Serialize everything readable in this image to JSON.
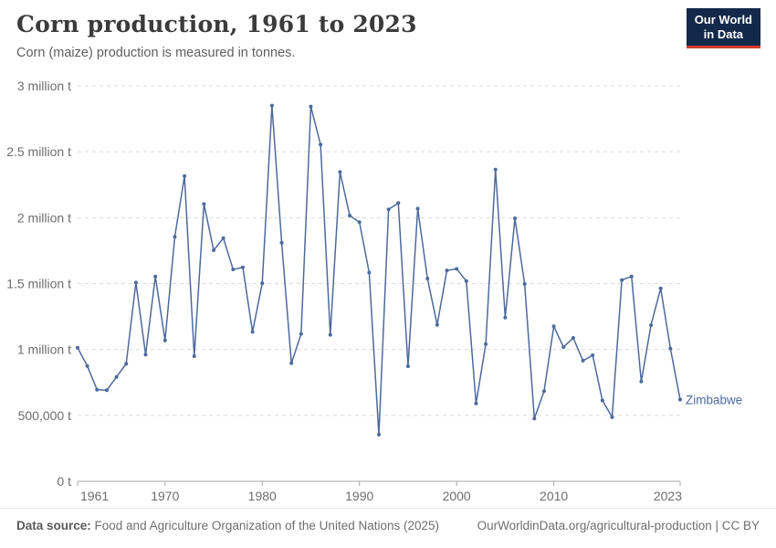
{
  "header": {
    "title": "Corn production, 1961 to 2023",
    "subtitle": "Corn (maize) production is measured in tonnes."
  },
  "logo": {
    "line1": "Our World",
    "line2": "in Data"
  },
  "chart_data": {
    "type": "line",
    "title": "Corn production, 1961 to 2023",
    "unit": "tonnes",
    "entity_label": "Zimbabwe",
    "x": [
      1961,
      1962,
      1963,
      1964,
      1965,
      1966,
      1967,
      1968,
      1969,
      1970,
      1971,
      1972,
      1973,
      1974,
      1975,
      1976,
      1977,
      1978,
      1979,
      1980,
      1981,
      1982,
      1983,
      1984,
      1985,
      1986,
      1987,
      1988,
      1989,
      1990,
      1991,
      1992,
      1993,
      1994,
      1995,
      1996,
      1997,
      1998,
      1999,
      2000,
      2001,
      2002,
      2003,
      2004,
      2005,
      2006,
      2007,
      2008,
      2009,
      2010,
      2011,
      2012,
      2013,
      2014,
      2015,
      2016,
      2017,
      2018,
      2019,
      2020,
      2021,
      2022,
      2023
    ],
    "series": [
      {
        "name": "Zimbabwe",
        "color": "#4C6A9C",
        "values": [
          1013000,
          875000,
          695000,
          691000,
          792000,
          892000,
          1508000,
          961000,
          1554000,
          1069000,
          1855000,
          2316000,
          949000,
          2104000,
          1753000,
          1845000,
          1607000,
          1623000,
          1134000,
          1503000,
          2850000,
          1810000,
          896000,
          1118000,
          2843000,
          2554000,
          1111000,
          2347000,
          2016000,
          1966000,
          1584000,
          354000,
          2063000,
          2111000,
          873000,
          2069000,
          1538000,
          1187000,
          1600000,
          1612000,
          1519000,
          591000,
          1041000,
          2365000,
          1242000,
          1995000,
          1497000,
          476000,
          684000,
          1176000,
          1018000,
          1088000,
          915000,
          956000,
          614000,
          487000,
          1527000,
          1554000,
          757000,
          1185000,
          1464000,
          1007000,
          620000
        ]
      }
    ],
    "xlim": [
      1961,
      2023
    ],
    "ylim": [
      0,
      3000000
    ],
    "xticks": [
      1961,
      1970,
      1980,
      1990,
      2000,
      2010,
      2023
    ],
    "yticks": [
      {
        "value": 0,
        "label": "0 t"
      },
      {
        "value": 500000,
        "label": "500,000 t"
      },
      {
        "value": 1000000,
        "label": "1 million t"
      },
      {
        "value": 1500000,
        "label": "1.5 million t"
      },
      {
        "value": 2000000,
        "label": "2 million t"
      },
      {
        "value": 2500000,
        "label": "2.5 million t"
      },
      {
        "value": 3000000,
        "label": "3 million t"
      }
    ],
    "grid": "horizontal-dashed",
    "legend_position": "end-of-line-label"
  },
  "footer": {
    "source_label": "Data source:",
    "source_text": " Food and Agriculture Organization of the United Nations (2025)",
    "link_text": "OurWorldinData.org/agricultural-production | CC BY"
  },
  "colors": {
    "line": "#4C6A9C",
    "logo_navy": "#12294b",
    "logo_red": "#d73c2c",
    "grid": "#dcdcdc",
    "axis": "#a5a5a5",
    "tick_label": "#6e6e6e"
  }
}
